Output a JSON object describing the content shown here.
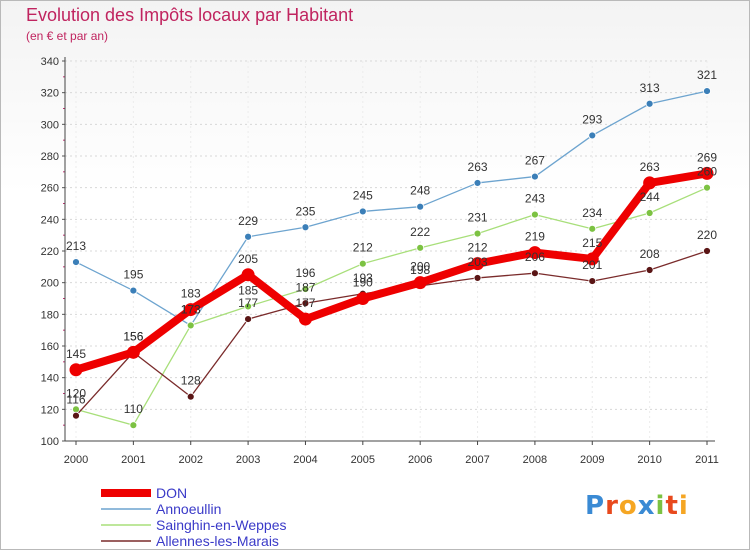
{
  "title": "Evolution des Impôts locaux par Habitant",
  "subtitle": "(en € et par an)",
  "logo": [
    "P",
    "r",
    "o",
    "x",
    "i",
    "t",
    "i"
  ],
  "logo_colors": [
    "#3a8ad4",
    "#e8491d",
    "#f5a623",
    "#3a8ad4",
    "#7cc242",
    "#e8491d",
    "#f5a623"
  ],
  "chart_data": {
    "type": "line",
    "categories": [
      "2000",
      "2001",
      "2002",
      "2003",
      "2004",
      "2005",
      "2006",
      "2007",
      "2008",
      "2009",
      "2010",
      "2011"
    ],
    "ylim": [
      100,
      340
    ],
    "yticks": [
      100,
      120,
      140,
      160,
      180,
      200,
      220,
      240,
      260,
      280,
      300,
      320,
      340
    ],
    "grid": "horizontal dashed",
    "legend": "bottom-left",
    "series": [
      {
        "name": "Annoeullin",
        "color": "#6da4cf",
        "marker": "#3b7fb8",
        "values": [
          213,
          195,
          173,
          229,
          235,
          245,
          248,
          263,
          267,
          293,
          313,
          321
        ]
      },
      {
        "name": "Sainghin-en-Weppes",
        "color": "#a8df7a",
        "marker": "#7cc242",
        "values": [
          120,
          110,
          173,
          185,
          196,
          212,
          222,
          231,
          243,
          234,
          244,
          260
        ]
      },
      {
        "name": "Allennes-les-Marais",
        "color": "#7a2b2b",
        "marker": "#5a1515",
        "values": [
          116,
          156,
          128,
          177,
          187,
          193,
          198,
          203,
          206,
          201,
          208,
          220
        ]
      },
      {
        "name": "DON",
        "color": "#ee0000",
        "marker": "#ee0000",
        "bold": true,
        "values": [
          145,
          156,
          183,
          205,
          177,
          190,
          200,
          212,
          219,
          215,
          263,
          269
        ]
      }
    ],
    "legend_order": [
      "DON",
      "Annoeullin",
      "Sainghin-en-Weppes",
      "Allennes-les-Marais"
    ]
  }
}
